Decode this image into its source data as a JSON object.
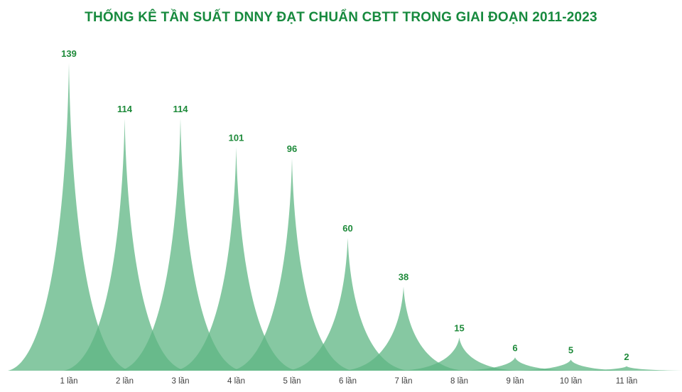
{
  "colors": {
    "title": "#178a3e",
    "peak": "#5db583",
    "label": "#1e8a3a"
  },
  "chart_data": {
    "type": "area",
    "title": "THỐNG KÊ TẦN SUẤT DNNY ĐẠT CHUẨN CBTT TRONG GIAI ĐOẠN 2011-2023",
    "categories": [
      "1 lần",
      "2 lần",
      "3 lần",
      "4 lần",
      "5 lần",
      "6 lần",
      "7 lần",
      "8 lần",
      "9 lần",
      "10 lần",
      "11 lần"
    ],
    "values": [
      139,
      114,
      114,
      101,
      96,
      60,
      38,
      15,
      6,
      5,
      2
    ],
    "ylim": [
      0,
      139
    ],
    "grid": false,
    "legend": "none"
  }
}
